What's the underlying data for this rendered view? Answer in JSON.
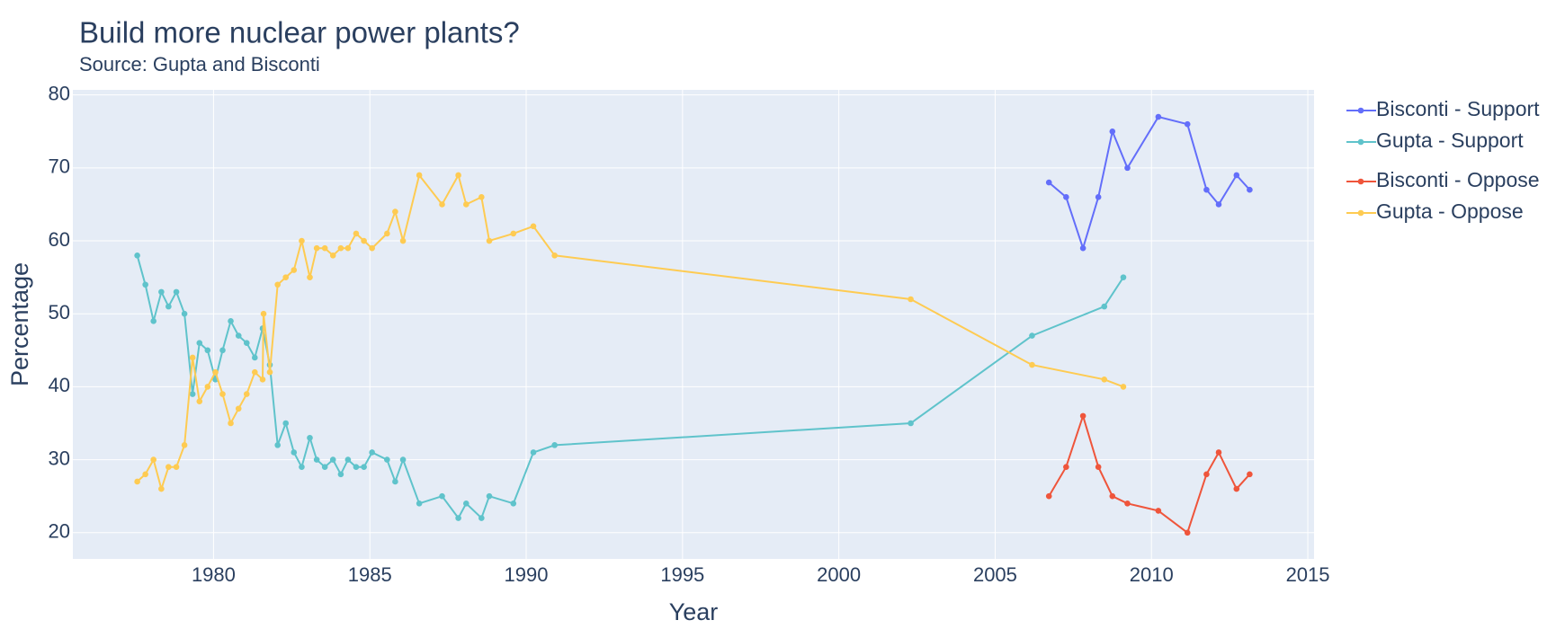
{
  "chart_data": {
    "type": "line",
    "title": "Build more nuclear power plants?",
    "subtitle": "Source: Gupta and Bisconti",
    "x_label": "Year",
    "y_label": "Percentage",
    "xlim": [
      1975.5,
      2015.2
    ],
    "ylim": [
      16.4,
      80.7
    ],
    "xticks": [
      1980,
      1985,
      1990,
      1995,
      2000,
      2005,
      2010,
      2015
    ],
    "yticks": [
      20,
      30,
      40,
      50,
      60,
      70,
      80
    ],
    "grid": true,
    "background": "#e5ecf6",
    "legend": "right",
    "series": [
      {
        "name": "Bisconti - Support",
        "color": "#636efa",
        "x": [
          2006.72,
          2007.27,
          2007.81,
          2008.3,
          2008.75,
          2009.23,
          2010.22,
          2011.15,
          2011.76,
          2012.15,
          2012.72,
          2013.14
        ],
        "values": [
          68,
          66,
          59,
          66,
          75,
          70,
          77,
          76,
          67,
          65,
          69,
          67
        ]
      },
      {
        "name": "Gupta - Support",
        "color": "#5fc3cb",
        "x": [
          1977.56,
          1977.82,
          1978.08,
          1978.33,
          1978.56,
          1978.81,
          1979.07,
          1979.33,
          1979.55,
          1979.81,
          1980.06,
          1980.29,
          1980.55,
          1980.8,
          1981.06,
          1981.32,
          1981.57,
          1981.8,
          1982.05,
          1982.31,
          1982.57,
          1982.82,
          1983.08,
          1983.3,
          1983.56,
          1983.82,
          1984.07,
          1984.3,
          1984.56,
          1984.81,
          1985.07,
          1985.55,
          1985.81,
          1986.06,
          1986.58,
          1987.31,
          1987.83,
          1988.08,
          1988.57,
          1988.82,
          1989.59,
          1990.23,
          1990.91,
          2002.3,
          2006.18,
          2008.49,
          2009.1
        ],
        "values": [
          58,
          54,
          49,
          53,
          51,
          53,
          50,
          39,
          46,
          45,
          41,
          45,
          49,
          47,
          46,
          44,
          48,
          43,
          32,
          35,
          31,
          29,
          33,
          30,
          29,
          30,
          28,
          30,
          29,
          29,
          31,
          30,
          27,
          30,
          24,
          25,
          22,
          24,
          22,
          25,
          24,
          31,
          32,
          35,
          47,
          51,
          55
        ]
      },
      {
        "name": "Bisconti - Oppose",
        "color": "#ef553b",
        "x": [
          2006.72,
          2007.27,
          2007.81,
          2008.3,
          2008.75,
          2009.23,
          2010.22,
          2011.15,
          2011.76,
          2012.15,
          2012.72,
          2013.14
        ],
        "values": [
          25,
          29,
          36,
          29,
          25,
          24,
          23,
          20,
          28,
          31,
          26,
          28
        ]
      },
      {
        "name": "Gupta - Oppose",
        "color": "#fecb52",
        "x": [
          1977.56,
          1977.82,
          1978.08,
          1978.33,
          1978.56,
          1978.81,
          1979.07,
          1979.33,
          1979.55,
          1979.81,
          1980.06,
          1980.29,
          1980.55,
          1980.8,
          1981.06,
          1981.32,
          1981.57,
          1981.6,
          1981.8,
          1982.05,
          1982.31,
          1982.57,
          1982.82,
          1983.08,
          1983.3,
          1983.56,
          1983.82,
          1984.07,
          1984.3,
          1984.56,
          1984.81,
          1985.07,
          1985.55,
          1985.81,
          1986.06,
          1986.58,
          1987.31,
          1987.83,
          1988.08,
          1988.57,
          1988.82,
          1989.59,
          1990.23,
          1990.91,
          2002.3,
          2006.18,
          2008.49,
          2009.1
        ],
        "values": [
          27,
          28,
          30,
          26,
          29,
          29,
          32,
          44,
          38,
          40,
          42,
          39,
          35,
          37,
          39,
          42,
          41,
          50,
          42,
          54,
          55,
          56,
          60,
          55,
          59,
          59,
          58,
          59,
          59,
          61,
          60,
          59,
          61,
          64,
          60,
          69,
          65,
          69,
          65,
          66,
          60,
          61,
          62,
          58,
          52,
          43,
          41,
          40
        ]
      }
    ]
  }
}
